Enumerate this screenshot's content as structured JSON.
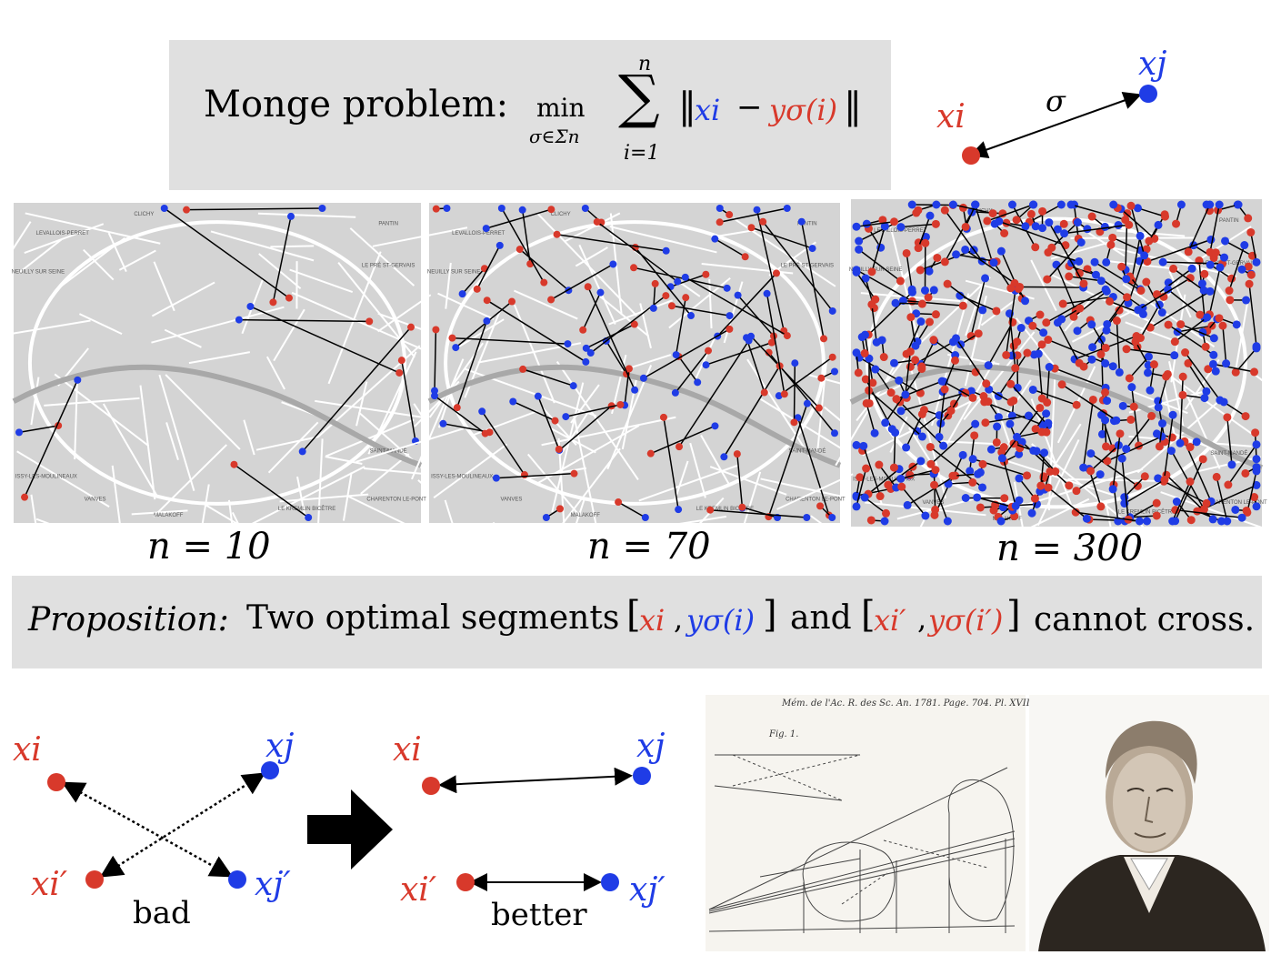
{
  "monge": {
    "prefix": "Monge problem:",
    "min_word": "min",
    "min_sub": "σ∈Σn",
    "sum_top": "n",
    "sum_bottom": "i=1",
    "norm_open": "‖",
    "xi": "xi",
    "minus": "−",
    "y_sigma": "yσ(i)",
    "norm_close": "‖"
  },
  "top_diagram": {
    "xi": "xi",
    "xj": "xj",
    "sigma": "σ"
  },
  "maps": [
    {
      "label": "n = 10"
    },
    {
      "label": "n = 70"
    },
    {
      "label": "n = 300"
    }
  ],
  "map_labels": [
    "CLICHY",
    "PANTIN",
    "LEVALLOIS-PERRET",
    "NEUILLY SUR SEINE",
    "LE PRÉ ST-GERVAIS",
    "VANVES",
    "MALAKOFF",
    "LE KREMLIN BICÊTRE",
    "CHARENTON LE-PONT",
    "ISSY-LES-MOULINEAUX",
    "SAINT-MANDÉ"
  ],
  "proposition": {
    "label": "Proposition:",
    "text1": "Two optimal segments",
    "seg1_xi": "xi",
    "seg1_y": "yσ(i)",
    "and": "and",
    "seg2_xi": "xi′",
    "seg2_y": "yσ(i′)",
    "text2": "cannot cross."
  },
  "bad_diagram": {
    "xi": "xi",
    "xj": "xj",
    "xi2": "xi′",
    "xj2": "xj′",
    "caption": "bad"
  },
  "better_diagram": {
    "xi": "xi",
    "xj": "xj",
    "xi2": "xi′",
    "xj2": "xj′",
    "caption": "better"
  },
  "engraving": {
    "header": "Mém. de l'Ac. R. des Sc. An. 1781. Page. 704. Pl. XVII.",
    "fig": "Fig. 1."
  },
  "colors": {
    "red": "#d8392b",
    "blue": "#1f3ce6",
    "panel": "#e0e0e0"
  }
}
